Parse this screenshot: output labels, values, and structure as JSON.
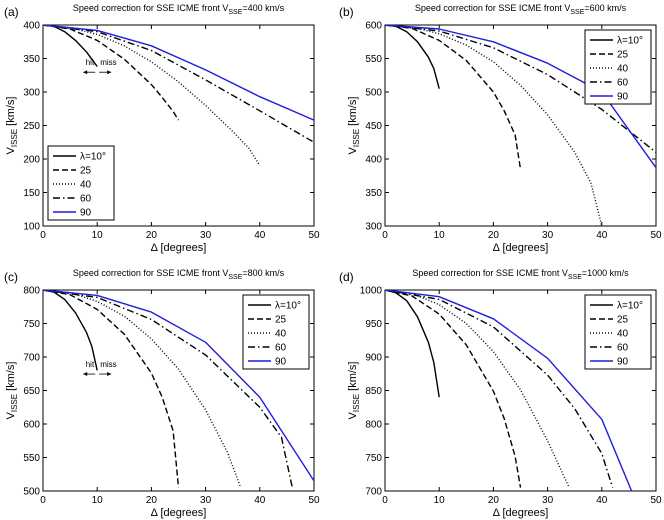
{
  "chart_data": [
    {
      "type": "line",
      "panel_label": "(a)",
      "title_pre": "Speed correction for SSE ICME front V",
      "title_sub": "SSE",
      "title_post": "=400 km/s",
      "ylabel_main": "V",
      "ylabel_sub": "ISSE",
      "ylabel_post": " [km/s]",
      "xlabel": "Δ [degrees]",
      "xlim": [
        0,
        50
      ],
      "ylim": [
        100,
        400
      ],
      "xticks": [
        0,
        10,
        20,
        30,
        40,
        50
      ],
      "yticks": [
        100,
        150,
        200,
        250,
        300,
        350,
        400
      ],
      "legend_position": "bottom-left",
      "annotation": {
        "x": 10,
        "y": 340,
        "hit": "hit",
        "miss": "miss"
      },
      "series": [
        {
          "name": "λ=10°",
          "style": "solid",
          "color": "#000000",
          "x": [
            0,
            2,
            4,
            6,
            8,
            9,
            10
          ],
          "y": [
            400,
            398,
            390,
            377,
            360,
            349,
            338
          ]
        },
        {
          "name": "25",
          "style": "dashed",
          "color": "#000000",
          "x": [
            0,
            5,
            10,
            15,
            20,
            22,
            24,
            25
          ],
          "y": [
            400,
            394,
            377,
            349,
            311,
            292,
            271,
            258
          ]
        },
        {
          "name": "40",
          "style": "dotted",
          "color": "#000000",
          "x": [
            0,
            5,
            10,
            15,
            20,
            25,
            30,
            35,
            38,
            40
          ],
          "y": [
            400,
            396,
            386,
            369,
            345,
            315,
            280,
            241,
            216,
            190
          ]
        },
        {
          "name": "60",
          "style": "dashdot",
          "color": "#000000",
          "x": [
            0,
            10,
            20,
            30,
            40,
            50
          ],
          "y": [
            400,
            390,
            362,
            318,
            272,
            225
          ]
        },
        {
          "name": "90",
          "style": "solid",
          "color": "#1f1fdc",
          "x": [
            0,
            10,
            20,
            30,
            40,
            50
          ],
          "y": [
            400,
            392,
            369,
            333,
            293,
            258
          ]
        }
      ]
    },
    {
      "type": "line",
      "panel_label": "(b)",
      "title_pre": "Speed correction for SSE ICME front V",
      "title_sub": "SSE",
      "title_post": "=600 km/s",
      "ylabel_main": "V",
      "ylabel_sub": "ISSE",
      "ylabel_post": " [km/s]",
      "xlabel": "Δ [degrees]",
      "xlim": [
        0,
        50
      ],
      "ylim": [
        300,
        600
      ],
      "xticks": [
        0,
        10,
        20,
        30,
        40,
        50
      ],
      "yticks": [
        300,
        350,
        400,
        450,
        500,
        550,
        600
      ],
      "legend_position": "top-right",
      "series": [
        {
          "name": "λ=10°",
          "style": "solid",
          "color": "#000000",
          "x": [
            0,
            2,
            4,
            6,
            8,
            9,
            10
          ],
          "y": [
            600,
            598,
            590,
            575,
            552,
            535,
            505
          ]
        },
        {
          "name": "25",
          "style": "dashed",
          "color": "#000000",
          "x": [
            0,
            5,
            10,
            15,
            20,
            22,
            24,
            25
          ],
          "y": [
            600,
            595,
            577,
            547,
            500,
            472,
            436,
            385
          ]
        },
        {
          "name": "40",
          "style": "dotted",
          "color": "#000000",
          "x": [
            0,
            5,
            10,
            15,
            20,
            25,
            30,
            35,
            38,
            40
          ],
          "y": [
            600,
            597,
            587,
            570,
            545,
            510,
            466,
            410,
            364,
            300
          ]
        },
        {
          "name": "60",
          "style": "dashdot",
          "color": "#000000",
          "x": [
            0,
            10,
            20,
            30,
            40,
            50
          ],
          "y": [
            600,
            591,
            566,
            526,
            474,
            410
          ]
        },
        {
          "name": "90",
          "style": "solid",
          "color": "#1f1fdc",
          "x": [
            0,
            10,
            20,
            30,
            40,
            50
          ],
          "y": [
            600,
            594,
            575,
            543,
            500,
            387
          ]
        }
      ]
    },
    {
      "type": "line",
      "panel_label": "(c)",
      "title_pre": "Speed correction for SSE ICME front V",
      "title_sub": "SSE",
      "title_post": "=800 km/s",
      "ylabel_main": "V",
      "ylabel_sub": "ISSE",
      "ylabel_post": " [km/s]",
      "xlabel": "Δ [degrees]",
      "xlim": [
        0,
        50
      ],
      "ylim": [
        500,
        800
      ],
      "xticks": [
        0,
        10,
        20,
        30,
        40,
        50
      ],
      "yticks": [
        500,
        550,
        600,
        650,
        700,
        750,
        800
      ],
      "legend_position": "top-right",
      "annotation": {
        "x": 10,
        "y": 685,
        "hit": "hit",
        "miss": "miss"
      },
      "series": [
        {
          "name": "λ=10°",
          "style": "solid",
          "color": "#000000",
          "x": [
            0,
            2,
            4,
            6,
            8,
            9,
            10
          ],
          "y": [
            800,
            797,
            786,
            766,
            737,
            716,
            680
          ]
        },
        {
          "name": "25",
          "style": "dashed",
          "color": "#000000",
          "x": [
            0,
            5,
            10,
            15,
            20,
            22,
            24,
            25
          ],
          "y": [
            800,
            793,
            771,
            734,
            676,
            640,
            590,
            505
          ]
        },
        {
          "name": "40",
          "style": "dotted",
          "color": "#000000",
          "x": [
            0,
            5,
            10,
            15,
            20,
            25,
            30,
            34,
            36.5
          ],
          "y": [
            800,
            796,
            783,
            761,
            727,
            682,
            621,
            558,
            505
          ]
        },
        {
          "name": "60",
          "style": "dashdot",
          "color": "#000000",
          "x": [
            0,
            10,
            20,
            30,
            40,
            44,
            46
          ],
          "y": [
            800,
            789,
            756,
            703,
            625,
            580,
            505
          ]
        },
        {
          "name": "90",
          "style": "solid",
          "color": "#1f1fdc",
          "x": [
            0,
            10,
            20,
            30,
            40,
            50
          ],
          "y": [
            800,
            792,
            767,
            722,
            640,
            515
          ]
        }
      ]
    },
    {
      "type": "line",
      "panel_label": "(d)",
      "title_pre": "Speed correction for SSE ICME front V",
      "title_sub": "SSE",
      "title_post": "=1000 km/s",
      "ylabel_main": "V",
      "ylabel_sub": "ISSE",
      "ylabel_post": " [km/s]",
      "xlabel": "Δ [degrees]",
      "xlim": [
        0,
        50
      ],
      "ylim": [
        700,
        1000
      ],
      "xticks": [
        0,
        10,
        20,
        30,
        40,
        50
      ],
      "yticks": [
        700,
        750,
        800,
        850,
        900,
        950,
        1000
      ],
      "legend_position": "top-right",
      "series": [
        {
          "name": "λ=10°",
          "style": "solid",
          "color": "#000000",
          "x": [
            0,
            2,
            4,
            6,
            8,
            9,
            10
          ],
          "y": [
            1000,
            996,
            984,
            960,
            922,
            892,
            840
          ]
        },
        {
          "name": "25",
          "style": "dashed",
          "color": "#000000",
          "x": [
            0,
            5,
            10,
            15,
            20,
            22,
            24,
            25
          ],
          "y": [
            1000,
            991,
            964,
            918,
            849,
            808,
            752,
            705
          ]
        },
        {
          "name": "40",
          "style": "dotted",
          "color": "#000000",
          "x": [
            0,
            5,
            10,
            15,
            20,
            25,
            30,
            33,
            34
          ],
          "y": [
            1000,
            995,
            978,
            950,
            908,
            851,
            775,
            722,
            705
          ]
        },
        {
          "name": "60",
          "style": "dashdot",
          "color": "#000000",
          "x": [
            0,
            10,
            20,
            30,
            35,
            40,
            42
          ],
          "y": [
            1000,
            986,
            945,
            873,
            823,
            756,
            705
          ]
        },
        {
          "name": "90",
          "style": "solid",
          "color": "#1f1fdc",
          "x": [
            0,
            10,
            20,
            30,
            40,
            45.5
          ],
          "y": [
            1000,
            990,
            957,
            898,
            807,
            700
          ]
        }
      ]
    }
  ]
}
